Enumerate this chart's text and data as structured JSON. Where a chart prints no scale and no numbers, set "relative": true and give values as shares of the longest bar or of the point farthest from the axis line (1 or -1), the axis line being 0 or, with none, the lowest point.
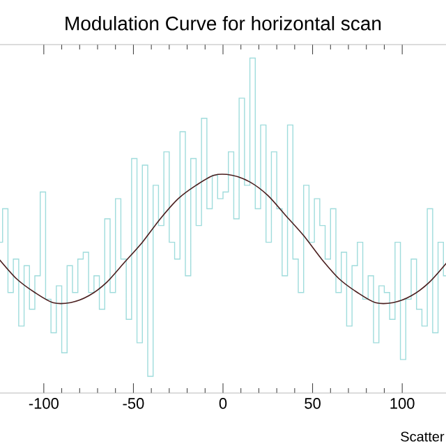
{
  "chart_data": {
    "type": "histogram",
    "title": "Modulation Curve for horizontal scan",
    "xlabel": "Scatter",
    "relative": true,
    "xlim": [
      -126,
      126
    ],
    "xticks": [
      -100,
      -50,
      0,
      50,
      100
    ],
    "series": [
      {
        "color": "#9fdcdc",
        "bins": [
          -126,
          -123,
          -120,
          -117,
          -114,
          -111,
          -108,
          -105,
          -102,
          -99,
          -96,
          -93,
          -90,
          -87,
          -84,
          -81,
          -78,
          -75,
          -72,
          -69,
          -66,
          -63,
          -60,
          -57,
          -54,
          -51,
          -48,
          -45,
          -42,
          -39,
          -36,
          -33,
          -30,
          -27,
          -24,
          -21,
          -18,
          -15,
          -12,
          -9,
          -6,
          -3,
          0,
          3,
          6,
          9,
          12,
          15,
          18,
          21,
          24,
          27,
          30,
          33,
          36,
          39,
          42,
          45,
          48,
          51,
          54,
          57,
          60,
          63,
          66,
          69,
          72,
          75,
          78,
          81,
          84,
          87,
          90,
          93,
          96,
          99,
          102,
          105,
          108,
          111,
          114,
          117,
          120,
          123,
          126
        ],
        "values": [
          0.45,
          0.55,
          0.3,
          0.4,
          0.2,
          0.38,
          0.25,
          0.35,
          0.6,
          0.28,
          0.18,
          0.32,
          0.12,
          0.38,
          0.3,
          0.4,
          0.42,
          0.3,
          0.35,
          0.25,
          0.52,
          0.3,
          0.58,
          0.4,
          0.22,
          0.7,
          0.15,
          0.68,
          0.05,
          0.62,
          0.5,
          0.72,
          0.45,
          0.4,
          0.78,
          0.35,
          0.7,
          0.5,
          0.82,
          0.55,
          0.65,
          0.58,
          0.6,
          0.72,
          0.52,
          0.88,
          0.62,
          1.0,
          0.55,
          0.8,
          0.45,
          0.72,
          0.55,
          0.35,
          0.8,
          0.4,
          0.3,
          0.62,
          0.45,
          0.58,
          0.5,
          0.4,
          0.55,
          0.3,
          0.42,
          0.2,
          0.38,
          0.45,
          0.28,
          0.35,
          0.15,
          0.32,
          0.3,
          0.22,
          0.45,
          0.1,
          0.28,
          0.4,
          0.25,
          0.2,
          0.55,
          0.18,
          0.45,
          0.35
        ]
      },
      {
        "type": "line",
        "color": "#4a1e1e",
        "x": [
          -125,
          -115,
          -105,
          -95,
          -85,
          -75,
          -65,
          -55,
          -45,
          -35,
          -25,
          -15,
          -5,
          5,
          15,
          25,
          35,
          45,
          55,
          65,
          75,
          85,
          95,
          105,
          115,
          125
        ],
        "values": [
          0.4,
          0.34,
          0.3,
          0.27,
          0.27,
          0.29,
          0.33,
          0.39,
          0.45,
          0.52,
          0.58,
          0.62,
          0.65,
          0.65,
          0.63,
          0.59,
          0.53,
          0.47,
          0.4,
          0.34,
          0.3,
          0.27,
          0.27,
          0.29,
          0.33,
          0.39
        ]
      }
    ]
  }
}
